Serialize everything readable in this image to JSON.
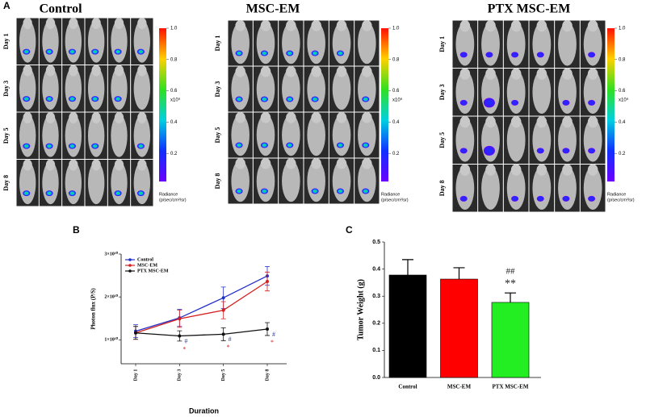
{
  "panel_labels": [
    "A",
    "B",
    "C"
  ],
  "imaging": {
    "panels": [
      {
        "title": "Control"
      },
      {
        "title": "MSC-EM"
      },
      {
        "title": "PTX MSC-EM"
      }
    ],
    "days": [
      "Day 1",
      "Day 3",
      "Day 5",
      "Day 8"
    ],
    "colorbar": {
      "lim": [
        0,
        1
      ],
      "ticks": [
        0.2,
        0.4,
        0.6,
        0.8,
        {
          "value": 1,
          "label": "1.0"
        }
      ],
      "scale": "x10⁹",
      "label_lines": [
        "Radiance",
        "(p/sec/cm²/sr)"
      ]
    }
  },
  "chart_data": [
    {
      "type": "line",
      "x_label": "Duration",
      "y_label": "Photon flux (P/S)",
      "categories": [
        "Day 1",
        "Day 3",
        "Day 5",
        "Day 8"
      ],
      "ylim": [
        4400000000,
        30000000000
      ],
      "yticks": [
        {
          "value": 10000000000,
          "label": "1×10¹⁰"
        },
        {
          "value": 20000000000,
          "label": "2×10¹⁰"
        },
        {
          "value": 30000000000,
          "label": "3×10¹⁰"
        }
      ],
      "series": [
        {
          "name": "Control",
          "color": "#2230c8",
          "values": [
            12000000000,
            15100000000,
            19800000000,
            24900000000
          ],
          "errors": [
            1500000000,
            2000000000,
            2500000000,
            2200000000
          ]
        },
        {
          "name": "MSC-EM",
          "color": "#d42020",
          "values": [
            11600000000,
            14900000000,
            16900000000,
            23600000000
          ],
          "errors": [
            1500000000,
            2000000000,
            2000000000,
            2200000000
          ]
        },
        {
          "name": "PTX MSC-EM",
          "color": "#111111",
          "values": [
            11600000000,
            10900000000,
            11300000000,
            12500000000
          ],
          "errors": [
            1500000000,
            1200000000,
            1500000000,
            1500000000
          ]
        }
      ],
      "annotations": [
        {
          "color": "#2b3fa8",
          "labels": [
            null,
            "#",
            "#",
            "#"
          ]
        },
        {
          "color": "#d42020",
          "labels": [
            null,
            "*",
            "*",
            "*"
          ]
        }
      ]
    },
    {
      "type": "bar",
      "y_label": "Tumor Weight (g)",
      "categories": [
        "Control",
        "MSC-EM",
        "PTX MSC-EM"
      ],
      "values": [
        0.378,
        0.363,
        0.277
      ],
      "errors": [
        0.057,
        0.042,
        0.035
      ],
      "colors": [
        "#000000",
        "#ff0000",
        "#22ee22"
      ],
      "ylim": [
        0,
        0.5
      ],
      "yticks": [
        {
          "value": 0,
          "label": "0.0"
        },
        0.1,
        0.2,
        0.3,
        0.4,
        0.5
      ],
      "annotations": [
        [
          null,
          null,
          "##"
        ],
        [
          null,
          null,
          "**"
        ]
      ]
    }
  ]
}
